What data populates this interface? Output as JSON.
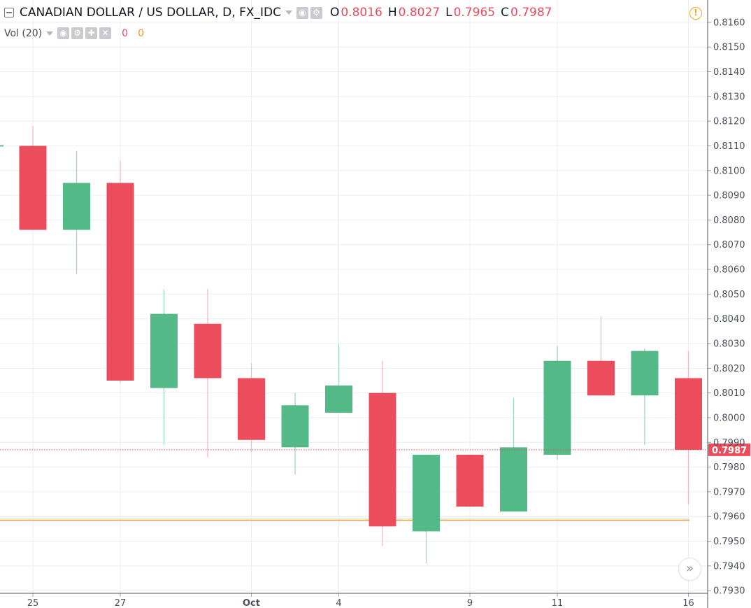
{
  "header": {
    "symbol_title": "CANADIAN DOLLAR / US DOLLAR, D, FX_IDC",
    "ohlc": [
      {
        "key": "O",
        "value": "0.8016"
      },
      {
        "key": "H",
        "value": "0.8027"
      },
      {
        "key": "L",
        "value": "0.7965"
      },
      {
        "key": "C",
        "value": "0.7987"
      }
    ],
    "indicator_label": "Vol (20)",
    "indicator_value_1": "0",
    "indicator_value_2": "0"
  },
  "icons": {
    "collapse": "minus-box-icon",
    "settings": "gear-icon",
    "visibility": "eye-icon",
    "add": "plus-icon",
    "close": "close-icon",
    "warning": "exclamation-circle-icon",
    "scroll": "double-chevron-right-icon"
  },
  "colors": {
    "up": "#53b987",
    "down": "#eb4d5c",
    "grid": "#e9eef3",
    "volume_ma": "#f59330",
    "price_tag": "#eb4d5c"
  },
  "chart_data": {
    "type": "candlestick",
    "title": "CANADIAN DOLLAR / US DOLLAR, D, FX_IDC",
    "y_ticks": [
      "0.8160",
      "0.8150",
      "0.8140",
      "0.8130",
      "0.8120",
      "0.8110",
      "0.8100",
      "0.8090",
      "0.8080",
      "0.8070",
      "0.8060",
      "0.8050",
      "0.8040",
      "0.8030",
      "0.8020",
      "0.8010",
      "0.8000",
      "0.7990",
      "0.7980",
      "0.7970",
      "0.7960",
      "0.7950",
      "0.7940",
      "0.7930"
    ],
    "ylim": [
      0.79275,
      0.81645
    ],
    "x_ticks": [
      {
        "label": "25",
        "index": 0
      },
      {
        "label": "27",
        "index": 2
      },
      {
        "label": "Oct",
        "index": 5
      },
      {
        "label": "4",
        "index": 7
      },
      {
        "label": "9",
        "index": 10
      },
      {
        "label": "11",
        "index": 12
      },
      {
        "label": "16",
        "index": 15
      }
    ],
    "candles": [
      {
        "open": 0.811,
        "high": 0.8118,
        "low": 0.8076,
        "close": 0.8076
      },
      {
        "open": 0.8076,
        "high": 0.8108,
        "low": 0.8058,
        "close": 0.8095
      },
      {
        "open": 0.8095,
        "high": 0.8104,
        "low": 0.8014,
        "close": 0.8015
      },
      {
        "open": 0.8012,
        "high": 0.8052,
        "low": 0.7989,
        "close": 0.8042
      },
      {
        "open": 0.8038,
        "high": 0.8052,
        "low": 0.7984,
        "close": 0.8016
      },
      {
        "open": 0.8016,
        "high": 0.8022,
        "low": 0.7986,
        "close": 0.7991
      },
      {
        "open": 0.7988,
        "high": 0.801,
        "low": 0.7977,
        "close": 0.8005
      },
      {
        "open": 0.8002,
        "high": 0.803,
        "low": 0.8002,
        "close": 0.8013
      },
      {
        "open": 0.801,
        "high": 0.8023,
        "low": 0.7948,
        "close": 0.7956
      },
      {
        "open": 0.7954,
        "high": 0.7985,
        "low": 0.7941,
        "close": 0.7985
      },
      {
        "open": 0.7985,
        "high": 0.7985,
        "low": 0.7964,
        "close": 0.7964
      },
      {
        "open": 0.7962,
        "high": 0.8008,
        "low": 0.7962,
        "close": 0.7988
      },
      {
        "open": 0.7985,
        "high": 0.8029,
        "low": 0.7983,
        "close": 0.8023
      },
      {
        "open": 0.8023,
        "high": 0.8041,
        "low": 0.8009,
        "close": 0.8009
      },
      {
        "open": 0.8009,
        "high": 0.8028,
        "low": 0.7989,
        "close": 0.8027
      },
      {
        "open": 0.8016,
        "high": 0.8027,
        "low": 0.7965,
        "close": 0.7987
      }
    ],
    "prior_close": 0.811,
    "last_price": 0.7987,
    "last_price_label": "0.7987",
    "volume_ma_level": 0.79585,
    "grid": true
  }
}
